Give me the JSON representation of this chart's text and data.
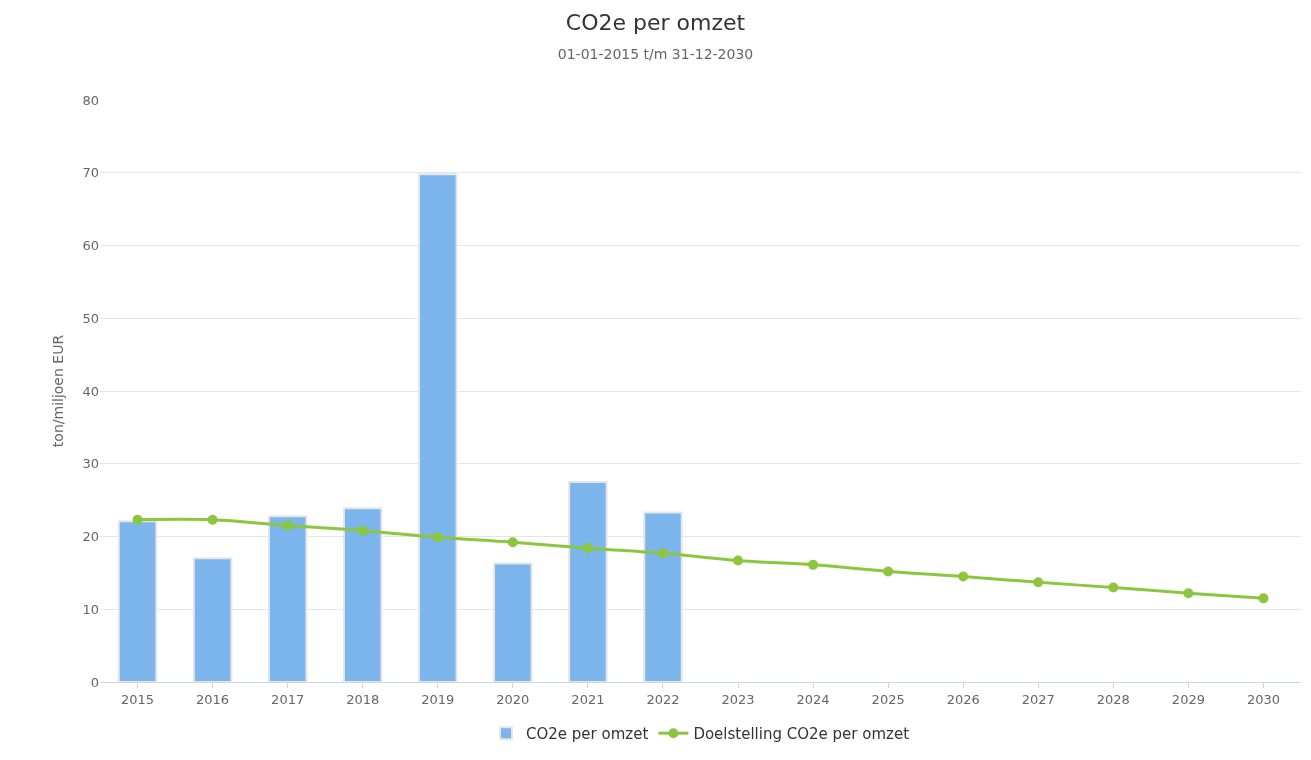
{
  "chart_data": {
    "type": "bar",
    "title": "CO2e per omzet",
    "subtitle": "01-01-2015 t/m 31-12-2030",
    "ylabel": "ton/miljoen EUR",
    "categories": [
      "2015",
      "2016",
      "2017",
      "2018",
      "2019",
      "2020",
      "2021",
      "2022",
      "2023",
      "2024",
      "2025",
      "2026",
      "2027",
      "2028",
      "2029",
      "2030"
    ],
    "series": [
      {
        "name": "CO2e per omzet",
        "color": "#7cb5ec",
        "values": [
          22.1,
          17.0,
          22.8,
          23.9,
          69.8,
          16.3,
          27.5,
          23.3,
          null,
          null,
          null,
          null,
          null,
          null,
          null,
          null
        ]
      },
      {
        "name": "Doelstelling CO2e per omzet",
        "type": "line",
        "color": "#8cc63f",
        "marker": "circle",
        "values": [
          22.3,
          22.3,
          21.5,
          20.8,
          19.9,
          19.2,
          18.4,
          17.7,
          16.7,
          16.1,
          15.2,
          14.5,
          13.7,
          13.0,
          12.2,
          11.5
        ]
      }
    ],
    "ylim": [
      0,
      80
    ],
    "yticks": [
      0,
      10,
      20,
      30,
      40,
      50,
      60,
      70,
      80
    ],
    "grid": "y",
    "legend": "bottom"
  }
}
